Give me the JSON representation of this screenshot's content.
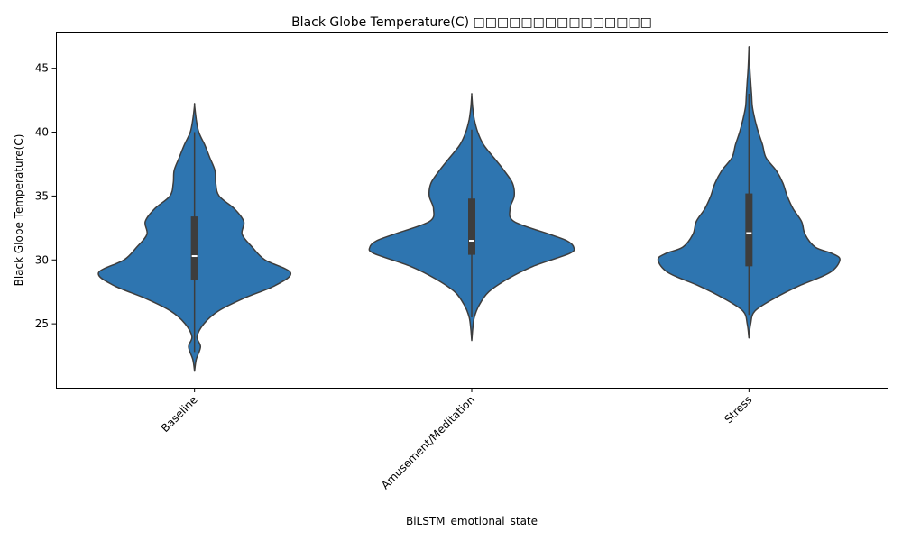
{
  "chart_data": {
    "type": "violin",
    "title": "Black Globe Temperature(C) □□□□□□□□□□□□□□□",
    "xlabel": "BiLSTM_emotional_state",
    "ylabel": "Black Globe Temperature(C)",
    "ylim": [
      20,
      47.8
    ],
    "yticks": [
      25,
      30,
      35,
      40,
      45
    ],
    "grid": false,
    "color": "#2e75b0",
    "edge_color": "#3d3d3d",
    "categories": [
      "Baseline",
      "Amusement/Meditation",
      "Stress"
    ],
    "violins": [
      {
        "name": "Baseline",
        "q1": 28.4,
        "median": 30.3,
        "q3": 33.4,
        "whisker_low": 22.8,
        "whisker_high": 40.0,
        "density": [
          [
            21.3,
            0
          ],
          [
            22.2,
            2
          ],
          [
            23.2,
            7
          ],
          [
            24.0,
            3
          ],
          [
            25.0,
            11
          ],
          [
            26.0,
            28
          ],
          [
            27.0,
            58
          ],
          [
            28.0,
            95
          ],
          [
            29.0,
            113
          ],
          [
            30.0,
            83
          ],
          [
            31.0,
            68
          ],
          [
            32.0,
            56
          ],
          [
            33.0,
            58
          ],
          [
            34.0,
            47
          ],
          [
            35.0,
            29
          ],
          [
            36.0,
            25
          ],
          [
            37.0,
            24
          ],
          [
            38.0,
            18
          ],
          [
            39.0,
            12
          ],
          [
            40.0,
            5
          ],
          [
            41.0,
            2
          ],
          [
            42.1,
            0
          ]
        ]
      },
      {
        "name": "Amusement/Meditation",
        "q1": 30.4,
        "median": 31.5,
        "q3": 34.8,
        "whisker_low": 25.5,
        "whisker_high": 40.2,
        "density": [
          [
            23.7,
            0
          ],
          [
            24.5,
            1
          ],
          [
            25.5,
            3
          ],
          [
            26.5,
            9
          ],
          [
            27.5,
            20
          ],
          [
            28.5,
            42
          ],
          [
            29.5,
            72
          ],
          [
            30.5,
            115
          ],
          [
            31.0,
            120
          ],
          [
            31.5,
            112
          ],
          [
            32.0,
            92
          ],
          [
            33.0,
            50
          ],
          [
            34.0,
            45
          ],
          [
            35.0,
            50
          ],
          [
            36.0,
            48
          ],
          [
            37.0,
            38
          ],
          [
            38.0,
            26
          ],
          [
            39.0,
            14
          ],
          [
            40.0,
            7
          ],
          [
            41.0,
            3
          ],
          [
            42.0,
            1
          ],
          [
            42.9,
            0
          ]
        ]
      },
      {
        "name": "Stress",
        "q1": 29.5,
        "median": 32.1,
        "q3": 35.2,
        "whisker_low": 25.7,
        "whisker_high": 43.0,
        "density": [
          [
            23.9,
            0
          ],
          [
            25.0,
            2
          ],
          [
            26.0,
            7
          ],
          [
            27.0,
            30
          ],
          [
            28.0,
            60
          ],
          [
            29.0,
            95
          ],
          [
            30.0,
            107
          ],
          [
            30.5,
            98
          ],
          [
            31.0,
            78
          ],
          [
            32.0,
            66
          ],
          [
            33.0,
            62
          ],
          [
            34.0,
            52
          ],
          [
            35.0,
            45
          ],
          [
            36.0,
            40
          ],
          [
            37.0,
            32
          ],
          [
            38.0,
            20
          ],
          [
            39.0,
            16
          ],
          [
            40.0,
            11
          ],
          [
            41.0,
            7
          ],
          [
            42.0,
            4
          ],
          [
            43.0,
            3
          ],
          [
            44.0,
            2
          ],
          [
            45.0,
            1
          ],
          [
            46.5,
            0
          ]
        ]
      }
    ]
  }
}
